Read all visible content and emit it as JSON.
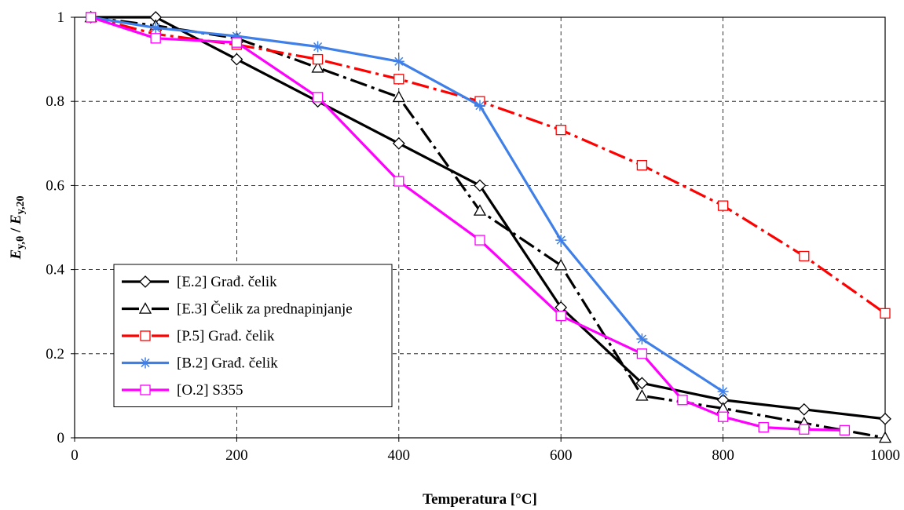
{
  "chart_data": {
    "type": "line",
    "xlabel": "Temperatura [°C]",
    "ylabel": "E y,θ / E y,20",
    "ylabel_parts": {
      "main": "E",
      "sub1": "y,θ",
      "sep": " / ",
      "main2": "E",
      "sub2": "y,20"
    },
    "xlim": [
      0,
      1000
    ],
    "ylim": [
      0,
      1
    ],
    "x_ticks": [
      "0",
      "200",
      "400",
      "600",
      "800",
      "1000"
    ],
    "y_ticks": [
      "0",
      "0.2",
      "0.4",
      "0.6",
      "0.8",
      "1"
    ],
    "grid": true,
    "legend_position": "bottom-left",
    "series": [
      {
        "name": "[E.2] Građ. čelik",
        "color": "#000000",
        "dash": "solid",
        "marker": "diamond",
        "x": [
          20,
          100,
          200,
          300,
          400,
          500,
          600,
          700,
          800,
          900,
          1000
        ],
        "y": [
          1.0,
          1.0,
          0.9,
          0.8,
          0.7,
          0.6,
          0.31,
          0.13,
          0.09,
          0.0675,
          0.045
        ]
      },
      {
        "name": "[E.3] Čelik za prednapinjanje",
        "color": "#000000",
        "dash": "dashdot",
        "marker": "triangle",
        "x": [
          20,
          100,
          200,
          300,
          400,
          500,
          600,
          700,
          800,
          900,
          1000
        ],
        "y": [
          1.0,
          0.98,
          0.95,
          0.88,
          0.81,
          0.54,
          0.41,
          0.1,
          0.07,
          0.035,
          0.0
        ]
      },
      {
        "name": "[P.5] Građ. čelik",
        "color": "#ff0000",
        "dash": "dashdot",
        "marker": "square",
        "x": [
          20,
          100,
          200,
          300,
          400,
          500,
          600,
          700,
          800,
          900,
          1000
        ],
        "y": [
          1.0,
          0.96,
          0.935,
          0.9,
          0.853,
          0.8,
          0.732,
          0.648,
          0.552,
          0.432,
          0.296
        ]
      },
      {
        "name": "[B.2] Građ. čelik",
        "color": "#3f7fe8",
        "dash": "solid",
        "marker": "star",
        "x": [
          20,
          100,
          200,
          300,
          400,
          500,
          600,
          700,
          800
        ],
        "y": [
          1.0,
          0.975,
          0.955,
          0.93,
          0.895,
          0.79,
          0.47,
          0.235,
          0.11
        ]
      },
      {
        "name": "[O.2] S355",
        "color": "#ff00ff",
        "dash": "solid",
        "marker": "square",
        "x": [
          20,
          100,
          200,
          300,
          400,
          500,
          600,
          700,
          750,
          800,
          850,
          900,
          950
        ],
        "y": [
          1.0,
          0.95,
          0.94,
          0.81,
          0.61,
          0.47,
          0.29,
          0.2,
          0.09,
          0.05,
          0.025,
          0.02,
          0.018
        ]
      }
    ]
  }
}
